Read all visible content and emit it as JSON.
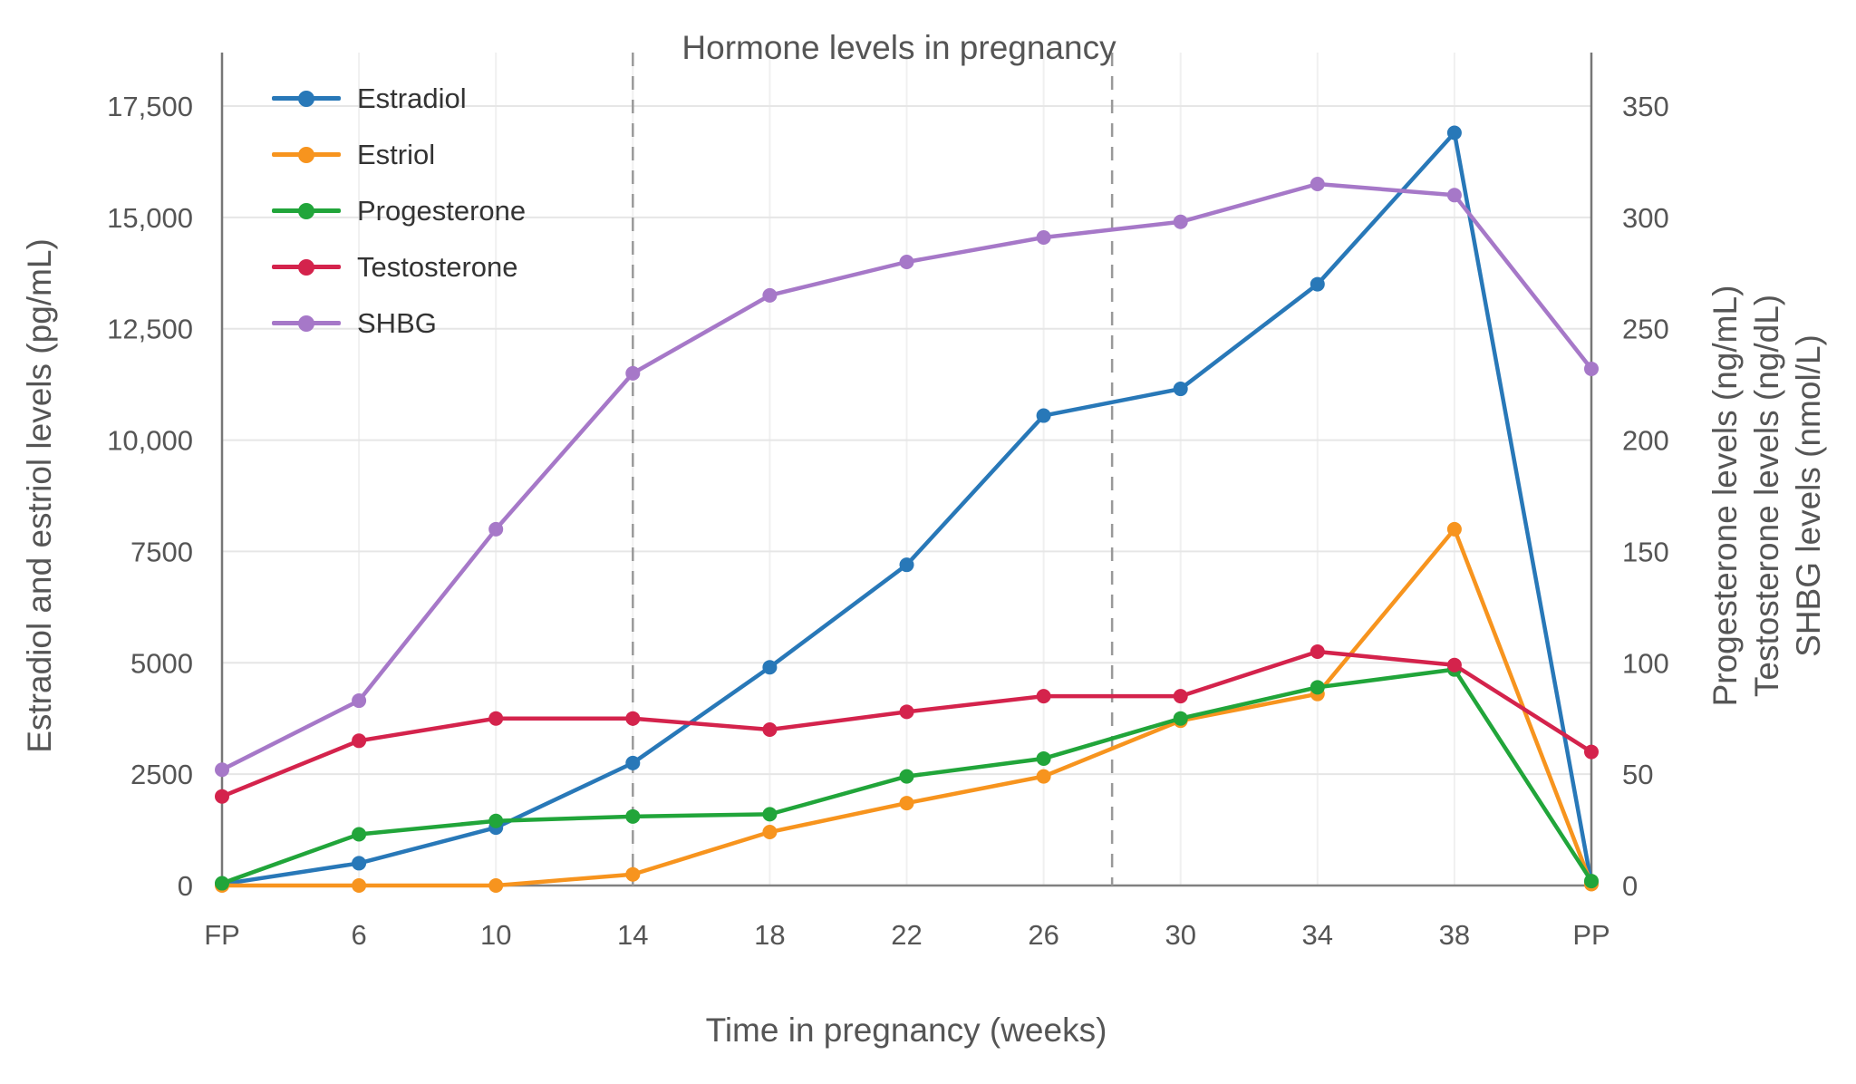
{
  "title": "Hormone levels in pregnancy",
  "x_axis": {
    "label": "Time in pregnancy (weeks)"
  },
  "left_axis": {
    "label": "Estradiol and estriol levels (pg/mL)",
    "range": [
      0,
      17500
    ],
    "ticks": [
      0,
      2500,
      5000,
      7500,
      10000,
      12500,
      15000,
      17500
    ],
    "tick_labels": [
      "0",
      "2500",
      "5000",
      "7500",
      "10,000",
      "12,500",
      "15,000",
      "17,500"
    ]
  },
  "right_axis": {
    "labels": [
      "Progesterone levels (ng/mL)",
      "Testosterone levels (ng/dL)",
      "SHBG levels (nmol/L)"
    ],
    "range": [
      0,
      350
    ],
    "ticks": [
      0,
      50,
      100,
      150,
      200,
      250,
      300,
      350
    ],
    "tick_labels": [
      "0",
      "50",
      "100",
      "150",
      "200",
      "250",
      "300",
      "350"
    ]
  },
  "vlines": {
    "dashed_positions": [
      3,
      6.5
    ],
    "solid_positions": [
      0,
      10
    ]
  },
  "colors": {
    "grid": "#e6e6e6",
    "grid_minor": "#f0f0f0",
    "zero_line": "#808080",
    "boundary_line": "#777777",
    "dashed_line": "#999999"
  },
  "chart_data": {
    "type": "line",
    "title": "Hormone levels in pregnancy",
    "xlabel": "Time in pregnancy (weeks)",
    "ylabel_left": "Estradiol and estriol levels (pg/mL)",
    "ylabel_right": "Progesterone levels (ng/mL) / Testosterone levels (ng/dL) / SHBG levels (nmol/L)",
    "ylim_left": [
      0,
      17500
    ],
    "ylim_right": [
      0,
      350
    ],
    "legend_position": "top-left",
    "grid": true,
    "x": [
      "FP",
      "6",
      "10",
      "14",
      "18",
      "22",
      "26",
      "30",
      "34",
      "38",
      "PP"
    ],
    "series": [
      {
        "name": "Estradiol",
        "axis": "left",
        "unit": "pg/mL",
        "color": "#2878b8",
        "values": [
          30,
          500,
          1300,
          2750,
          4900,
          7200,
          10550,
          11150,
          13500,
          16900,
          50
        ]
      },
      {
        "name": "Estriol",
        "axis": "left",
        "unit": "pg/mL",
        "color": "#f7941e",
        "values": [
          0,
          0,
          0,
          250,
          1200,
          1850,
          2450,
          3700,
          4300,
          8000,
          30
        ]
      },
      {
        "name": "Progesterone",
        "axis": "right",
        "unit": "ng/mL",
        "color": "#21a53a",
        "values": [
          1,
          23,
          29,
          31,
          32,
          49,
          57,
          75,
          89,
          97,
          2
        ]
      },
      {
        "name": "Testosterone",
        "axis": "right",
        "unit": "ng/dL",
        "color": "#d4234c",
        "values": [
          40,
          65,
          75,
          75,
          70,
          78,
          85,
          85,
          105,
          99,
          60
        ]
      },
      {
        "name": "SHBG",
        "axis": "right",
        "unit": "nmol/L",
        "color": "#a678c8",
        "values": [
          52,
          83,
          160,
          230,
          265,
          280,
          291,
          298,
          315,
          310,
          232
        ]
      }
    ]
  }
}
